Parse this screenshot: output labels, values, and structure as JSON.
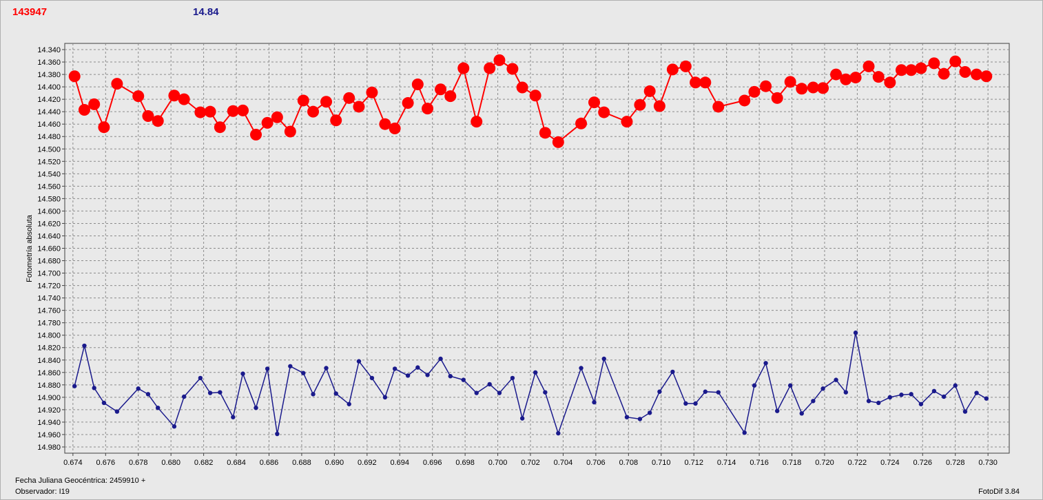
{
  "header": {
    "object_id": "143947",
    "magnitude": "14.84"
  },
  "footer": {
    "jd_label": "Fecha Juliana Geocéntrica: 2459910 +",
    "observer": "Observador: I19",
    "app": "FotoDif 3.84"
  },
  "chart_data": {
    "type": "line",
    "ylabel": "Fotometría absoluta",
    "xlim": [
      0.6735,
      0.7313
    ],
    "ylim": [
      14.33,
      14.99
    ],
    "y_inverted": true,
    "grid": true,
    "x_ticks": [
      0.674,
      0.676,
      0.678,
      0.68,
      0.682,
      0.684,
      0.686,
      0.688,
      0.69,
      0.692,
      0.694,
      0.696,
      0.698,
      0.7,
      0.702,
      0.704,
      0.706,
      0.708,
      0.71,
      0.712,
      0.714,
      0.716,
      0.718,
      0.72,
      0.722,
      0.724,
      0.726,
      0.728,
      0.73
    ],
    "x_tick_labels": [
      "0.674",
      "0.676",
      "0.678",
      "0.680",
      "0.682",
      "0.684",
      "0.686",
      "0.688",
      "0.690",
      "0.692",
      "0.694",
      "0.696",
      "0.698",
      "0.700",
      "0.702",
      "0.704",
      "0.706",
      "0.708",
      "0.710",
      "0.712",
      "0.714",
      "0.716",
      "0.718",
      "0.720",
      "0.722",
      "0.724",
      "0.726",
      "0.728",
      "0.730"
    ],
    "y_ticks": [
      14.34,
      14.36,
      14.38,
      14.4,
      14.42,
      14.44,
      14.46,
      14.48,
      14.5,
      14.52,
      14.54,
      14.56,
      14.58,
      14.6,
      14.62,
      14.64,
      14.66,
      14.68,
      14.7,
      14.72,
      14.74,
      14.76,
      14.78,
      14.8,
      14.82,
      14.84,
      14.86,
      14.88,
      14.9,
      14.92,
      14.94,
      14.96,
      14.98
    ],
    "y_tick_labels": [
      "14.340",
      "14.360",
      "14.380",
      "14.400",
      "14.420",
      "14.440",
      "14.460",
      "14.480",
      "14.500",
      "14.520",
      "14.540",
      "14.560",
      "14.580",
      "14.600",
      "14.620",
      "14.640",
      "14.660",
      "14.680",
      "14.700",
      "14.720",
      "14.740",
      "14.760",
      "14.780",
      "14.800",
      "14.820",
      "14.840",
      "14.860",
      "14.880",
      "14.900",
      "14.920",
      "14.940",
      "14.960",
      "14.980"
    ],
    "x": [
      0.6741,
      0.6747,
      0.6753,
      0.6759,
      0.6767,
      0.678,
      0.6786,
      0.6792,
      0.6802,
      0.6808,
      0.6818,
      0.6824,
      0.683,
      0.6838,
      0.6844,
      0.6852,
      0.6859,
      0.6865,
      0.6873,
      0.6881,
      0.6887,
      0.6895,
      0.6901,
      0.6909,
      0.6915,
      0.6923,
      0.6931,
      0.6937,
      0.6945,
      0.6951,
      0.6957,
      0.6965,
      0.6971,
      0.6979,
      0.6987,
      0.6995,
      0.7001,
      0.7009,
      0.7015,
      0.7023,
      0.7029,
      0.7037,
      0.7051,
      0.7059,
      0.7065,
      0.7079,
      0.7087,
      0.7093,
      0.7099,
      0.7107,
      0.7115,
      0.7121,
      0.7127,
      0.7135,
      0.7151,
      0.7157,
      0.7164,
      0.7171,
      0.7179,
      0.7186,
      0.7193,
      0.7199,
      0.7207,
      0.7213,
      0.7219,
      0.7227,
      0.7233,
      0.724,
      0.7247,
      0.7253,
      0.7259,
      0.7267,
      0.7273,
      0.728,
      0.7286,
      0.7293,
      0.7299
    ],
    "series": [
      {
        "color": "#ff0000",
        "marker": "large-circle",
        "values": [
          14.383,
          14.437,
          14.428,
          14.465,
          14.395,
          14.415,
          14.447,
          14.455,
          14.414,
          14.42,
          14.441,
          14.44,
          14.465,
          14.439,
          14.438,
          14.477,
          14.458,
          14.449,
          14.472,
          14.422,
          14.44,
          14.424,
          14.454,
          14.418,
          14.432,
          14.409,
          14.46,
          14.467,
          14.426,
          14.396,
          14.435,
          14.404,
          14.415,
          14.37,
          14.456,
          14.37,
          14.357,
          14.371,
          14.401,
          14.414,
          14.474,
          14.489,
          14.459,
          14.425,
          14.441,
          14.456,
          14.429,
          14.407,
          14.431,
          14.372,
          14.367,
          14.393,
          14.393,
          14.432,
          14.422,
          14.408,
          14.399,
          14.418,
          14.392,
          14.403,
          14.401,
          14.402,
          14.38,
          14.388,
          14.385,
          14.367,
          14.384,
          14.393,
          14.373,
          14.373,
          14.37,
          14.362,
          14.379,
          14.359,
          14.376,
          14.38,
          14.383
        ]
      },
      {
        "color": "#1a1a8c",
        "marker": "small-circle",
        "values": [
          14.882,
          14.817,
          14.885,
          14.909,
          14.923,
          14.886,
          14.895,
          14.917,
          14.947,
          14.899,
          14.869,
          14.893,
          14.892,
          14.932,
          14.862,
          14.917,
          14.854,
          14.959,
          14.85,
          14.861,
          14.895,
          14.853,
          14.894,
          14.911,
          14.842,
          14.869,
          14.9,
          14.854,
          14.865,
          14.852,
          14.864,
          14.838,
          14.866,
          14.872,
          14.893,
          14.879,
          14.893,
          14.869,
          14.934,
          14.86,
          14.892,
          14.958,
          14.853,
          14.908,
          14.838,
          14.932,
          14.935,
          14.925,
          14.891,
          14.859,
          14.91,
          14.91,
          14.891,
          14.892,
          14.957,
          14.881,
          14.845,
          14.922,
          14.881,
          14.926,
          14.906,
          14.886,
          14.872,
          14.892,
          14.796,
          14.906,
          14.909,
          14.9,
          14.896,
          14.895,
          14.911,
          14.89,
          14.899,
          14.881,
          14.923,
          14.893,
          14.902
        ]
      }
    ]
  }
}
